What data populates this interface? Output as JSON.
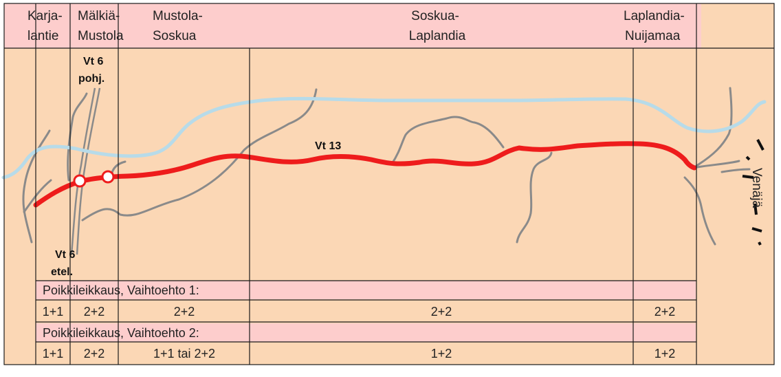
{
  "colors": {
    "background": "#fbd7b5",
    "header_band": "#fdcdcc",
    "label_band": "#fdcdcc",
    "main_road": "#ee1c1c",
    "river": "#b7dbe9",
    "side_roads": "#8a8a8a",
    "border": "#1a1a1a"
  },
  "sections": [
    {
      "line1": "Karja-",
      "line2": "lantie"
    },
    {
      "line1": "Mälkiä-",
      "line2": "Mustola"
    },
    {
      "line1": "Mustola-",
      "line2": "Soskua"
    },
    {
      "line1": "Soskua-",
      "line2": "Laplandia"
    },
    {
      "line1": "Laplandia-",
      "line2": "Nuijamaa"
    }
  ],
  "map": {
    "main_road_label": "Vt 13",
    "vt6_north": {
      "line1": "Vt 6",
      "line2": "pohj."
    },
    "vt6_south": {
      "line1": "Vt 6",
      "line2": "etel."
    },
    "border_label": "Venäjä"
  },
  "option1": {
    "title": "Poikkileikkaus, Vaihtoehto 1:",
    "values": [
      "1+1",
      "2+2",
      "2+2",
      "2+2",
      "2+2"
    ]
  },
  "option2": {
    "title": "Poikkileikkaus, Vaihtoehto 2:",
    "values": [
      "1+1",
      "2+2",
      "1+1 tai 2+2",
      "1+2",
      "1+2"
    ]
  }
}
